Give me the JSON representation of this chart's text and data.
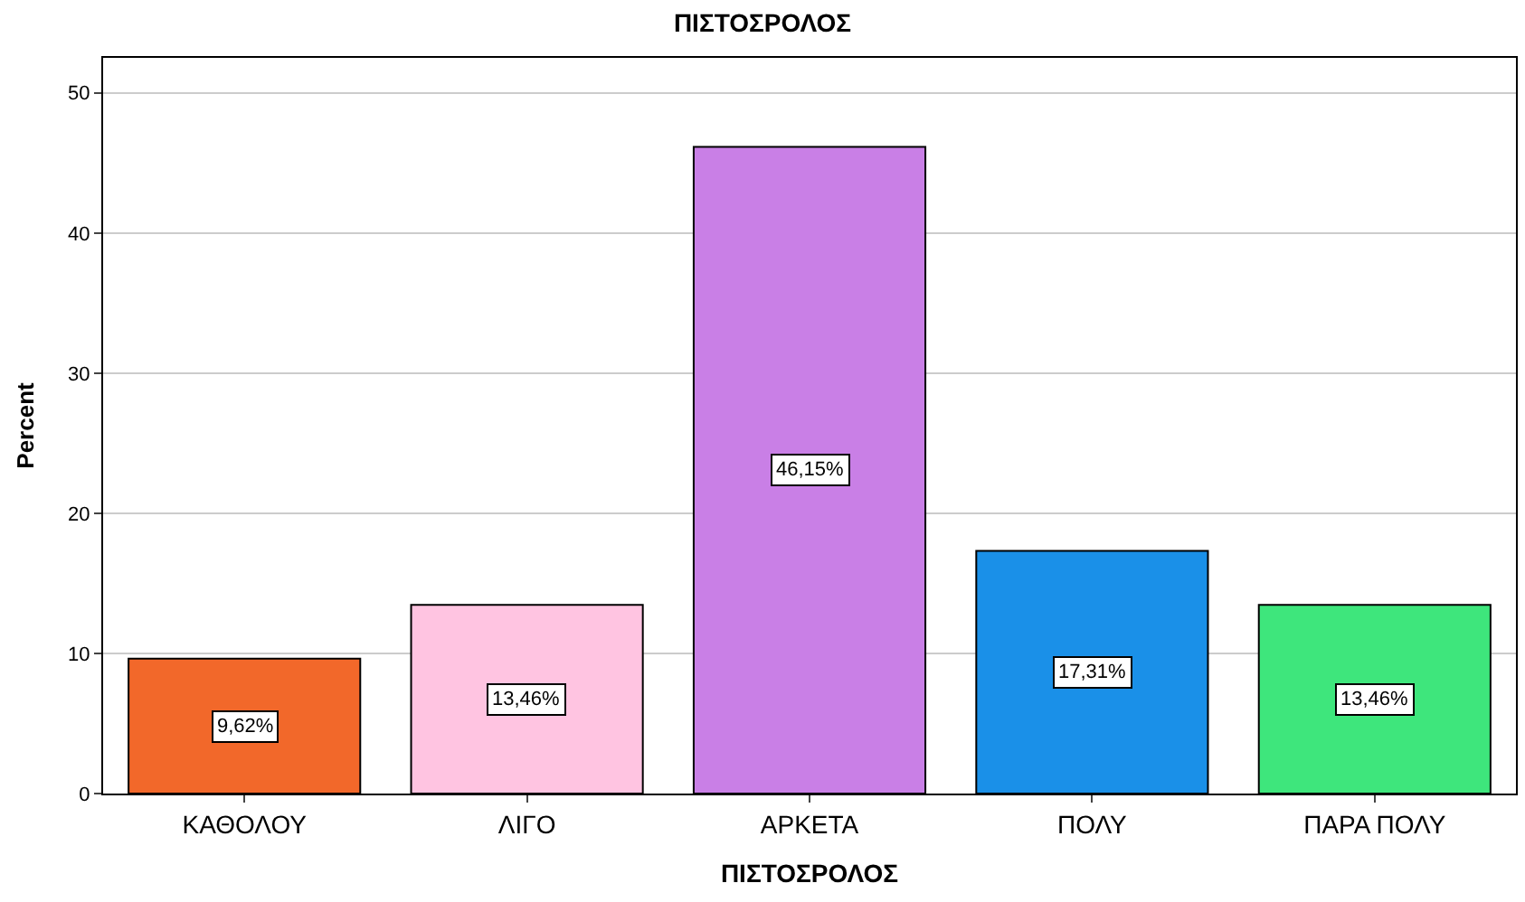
{
  "chart_data": {
    "type": "bar",
    "title": "ΠΙΣΤΟΣΡΟΛΟΣ",
    "xlabel": "ΠΙΣΤΟΣΡΟΛΟΣ",
    "ylabel": "Percent",
    "categories": [
      "ΚΑΘΟΛΟΥ",
      "ΛΙΓΟ",
      "ΑΡΚΕΤΑ",
      "ΠΟΛΥ",
      "ΠΑΡΑ ΠΟΛΥ"
    ],
    "values": [
      9.62,
      13.46,
      46.15,
      17.31,
      13.46
    ],
    "value_labels": [
      "9,62%",
      "13,46%",
      "46,15%",
      "17,31%",
      "13,46%"
    ],
    "colors": [
      "#f2682a",
      "#ffc4e1",
      "#c97fe6",
      "#1a90e8",
      "#3ee67c"
    ],
    "ylim": [
      0,
      52.5
    ],
    "yticks": [
      0,
      10,
      20,
      30,
      40,
      50
    ],
    "grid": "y"
  }
}
